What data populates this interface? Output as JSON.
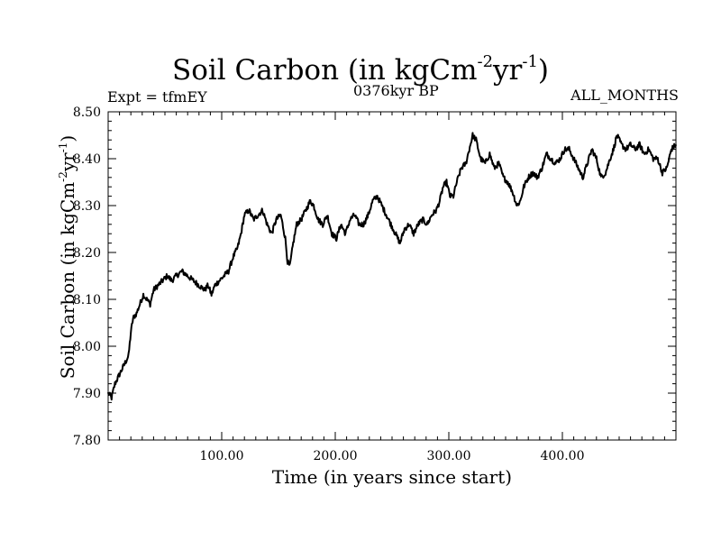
{
  "chart_data": {
    "type": "line",
    "title": {
      "main": "Soil Carbon (in kgCm",
      "exp1": "-2",
      "mid": "yr",
      "exp2": "-1",
      "close": ")"
    },
    "subtitle_left": "Expt = tfmEY",
    "subtitle_center": "0376kyr BP",
    "subtitle_right": "ALL_MONTHS",
    "xlabel": "Time (in years since start)",
    "ylabel": {
      "main": "Soil Carbon (in kgCm",
      "exp1": "-2",
      "mid": "yr",
      "exp2": "-1",
      "close": ")"
    },
    "xlim": [
      0,
      500
    ],
    "ylim": [
      7.8,
      8.5
    ],
    "x_ticks": [
      100,
      200,
      300,
      400
    ],
    "x_tick_labels": [
      "100.00",
      "200.00",
      "300.00",
      "400.00"
    ],
    "y_ticks": [
      7.8,
      7.9,
      8.0,
      8.1,
      8.2,
      8.3,
      8.4,
      8.5
    ],
    "y_tick_labels": [
      "7.80",
      "7.90",
      "8.00",
      "8.10",
      "8.20",
      "8.30",
      "8.40",
      "8.50"
    ],
    "grid": false,
    "series": [
      {
        "color": "#000000",
        "x": [
          0,
          3,
          6,
          10,
          14,
          18,
          20,
          22,
          25,
          28,
          31,
          34,
          37,
          40,
          44,
          48,
          52,
          56,
          60,
          65,
          70,
          75,
          80,
          85,
          88,
          91,
          94,
          98,
          102,
          106,
          110,
          114,
          117,
          120,
          124,
          128,
          132,
          136,
          140,
          144,
          148,
          152,
          156,
          158,
          160,
          163,
          166,
          170,
          174,
          178,
          181,
          185,
          189,
          193,
          197,
          201,
          205,
          209,
          213,
          217,
          221,
          225,
          229,
          233,
          237,
          241,
          245,
          249,
          253,
          257,
          261,
          265,
          269,
          273,
          277,
          281,
          285,
          289,
          292,
          295,
          298,
          301,
          304,
          307,
          311,
          315,
          318,
          321,
          324,
          328,
          332,
          336,
          340,
          344,
          348,
          352,
          356,
          360,
          363,
          366,
          370,
          374,
          378,
          382,
          386,
          390,
          394,
          398,
          402,
          406,
          410,
          414,
          418,
          422,
          426,
          430,
          434,
          438,
          442,
          445,
          448,
          452,
          456,
          460,
          464,
          468,
          472,
          476,
          480,
          484,
          488,
          492,
          496,
          500
        ],
        "y": [
          7.9,
          7.89,
          7.92,
          7.94,
          7.96,
          7.98,
          8.03,
          8.06,
          8.07,
          8.09,
          8.11,
          8.1,
          8.09,
          8.12,
          8.13,
          8.14,
          8.15,
          8.14,
          8.15,
          8.16,
          8.15,
          8.14,
          8.13,
          8.12,
          8.13,
          8.11,
          8.13,
          8.14,
          8.15,
          8.16,
          8.19,
          8.21,
          8.24,
          8.28,
          8.29,
          8.27,
          8.28,
          8.29,
          8.26,
          8.24,
          8.27,
          8.28,
          8.23,
          8.18,
          8.17,
          8.22,
          8.26,
          8.27,
          8.29,
          8.31,
          8.3,
          8.27,
          8.26,
          8.28,
          8.24,
          8.23,
          8.26,
          8.24,
          8.27,
          8.28,
          8.26,
          8.26,
          8.28,
          8.31,
          8.32,
          8.3,
          8.28,
          8.26,
          8.24,
          8.22,
          8.25,
          8.26,
          8.24,
          8.26,
          8.27,
          8.26,
          8.28,
          8.29,
          8.31,
          8.34,
          8.35,
          8.32,
          8.32,
          8.35,
          8.38,
          8.39,
          8.42,
          8.45,
          8.44,
          8.4,
          8.39,
          8.41,
          8.38,
          8.39,
          8.36,
          8.35,
          8.33,
          8.3,
          8.31,
          8.34,
          8.36,
          8.37,
          8.36,
          8.38,
          8.41,
          8.4,
          8.39,
          8.4,
          8.42,
          8.42,
          8.4,
          8.38,
          8.36,
          8.39,
          8.42,
          8.4,
          8.36,
          8.37,
          8.4,
          8.42,
          8.45,
          8.43,
          8.42,
          8.43,
          8.42,
          8.43,
          8.41,
          8.42,
          8.4,
          8.4,
          8.37,
          8.38,
          8.42,
          8.43
        ]
      }
    ]
  }
}
